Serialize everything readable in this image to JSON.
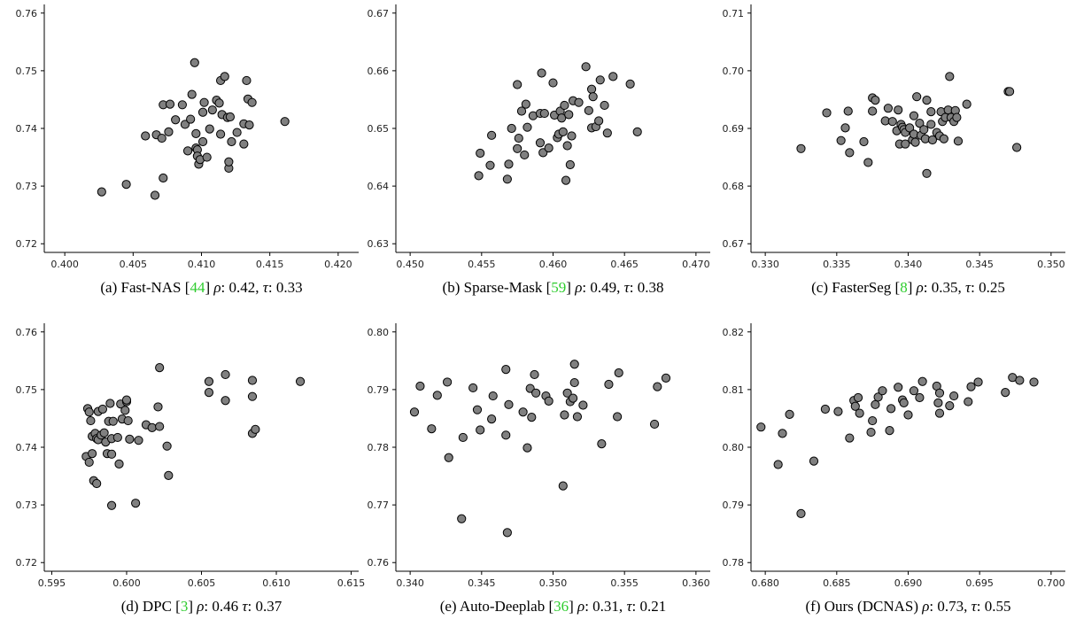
{
  "figure": {
    "background": "#ffffff",
    "point_color": "#808080",
    "point_edge": "#000000",
    "ref_color": "#2ecc2e"
  },
  "chart_data": [
    {
      "type": "scatter",
      "caption": {
        "prefix": "(a)  Fast-NAS [",
        "ref": "44",
        "mid": "] ",
        "rho_label": "ρ",
        "rho_text": ": 0.42, ",
        "tau_label": "τ",
        "tau_text": ": 0.33"
      },
      "xlim": [
        0.3985,
        0.4215
      ],
      "ylim": [
        0.7185,
        0.7615
      ],
      "xticks": [
        "0.400",
        "0.405",
        "0.410",
        "0.415",
        "0.420"
      ],
      "yticks": [
        "0.72",
        "0.73",
        "0.74",
        "0.75",
        "0.76"
      ],
      "points": [
        [
          0.4027,
          0.729
        ],
        [
          0.4045,
          0.7303
        ],
        [
          0.4066,
          0.7284
        ],
        [
          0.4072,
          0.7314
        ],
        [
          0.4059,
          0.7387
        ],
        [
          0.4067,
          0.7389
        ],
        [
          0.4071,
          0.7383
        ],
        [
          0.4076,
          0.7394
        ],
        [
          0.4072,
          0.7441
        ],
        [
          0.4077,
          0.7442
        ],
        [
          0.4081,
          0.7415
        ],
        [
          0.4086,
          0.7441
        ],
        [
          0.4088,
          0.7407
        ],
        [
          0.409,
          0.7361
        ],
        [
          0.4092,
          0.7416
        ],
        [
          0.4093,
          0.7459
        ],
        [
          0.4095,
          0.7514
        ],
        [
          0.4096,
          0.7391
        ],
        [
          0.4096,
          0.7366
        ],
        [
          0.4097,
          0.7363
        ],
        [
          0.4097,
          0.7352
        ],
        [
          0.4098,
          0.7338
        ],
        [
          0.4099,
          0.7346
        ],
        [
          0.4101,
          0.7377
        ],
        [
          0.4101,
          0.7428
        ],
        [
          0.4102,
          0.7445
        ],
        [
          0.4104,
          0.735
        ],
        [
          0.4106,
          0.7399
        ],
        [
          0.4108,
          0.7432
        ],
        [
          0.4111,
          0.7449
        ],
        [
          0.4113,
          0.7444
        ],
        [
          0.4114,
          0.7483
        ],
        [
          0.4114,
          0.739
        ],
        [
          0.4115,
          0.7424
        ],
        [
          0.4117,
          0.749
        ],
        [
          0.4119,
          0.7419
        ],
        [
          0.412,
          0.7331
        ],
        [
          0.412,
          0.7342
        ],
        [
          0.4121,
          0.742
        ],
        [
          0.4122,
          0.7377
        ],
        [
          0.4126,
          0.7393
        ],
        [
          0.4131,
          0.7408
        ],
        [
          0.4131,
          0.7373
        ],
        [
          0.4133,
          0.7483
        ],
        [
          0.4134,
          0.7451
        ],
        [
          0.4135,
          0.7406
        ],
        [
          0.4137,
          0.7445
        ],
        [
          0.4161,
          0.7412
        ]
      ]
    },
    {
      "type": "scatter",
      "caption": {
        "prefix": "(b)  Sparse-Mask [",
        "ref": "59",
        "mid": "] ",
        "rho_label": "ρ",
        "rho_text": ": 0.49, ",
        "tau_label": "τ",
        "tau_text": ": 0.38"
      },
      "xlim": [
        0.449,
        0.471
      ],
      "ylim": [
        0.6285,
        0.6715
      ],
      "xticks": [
        "0.450",
        "0.455",
        "0.460",
        "0.465",
        "0.470"
      ],
      "yticks": [
        "0.63",
        "0.64",
        "0.65",
        "0.66",
        "0.67"
      ],
      "points": [
        [
          0.4548,
          0.6418
        ],
        [
          0.4549,
          0.6457
        ],
        [
          0.4556,
          0.6436
        ],
        [
          0.4557,
          0.6488
        ],
        [
          0.4568,
          0.6412
        ],
        [
          0.4569,
          0.6438
        ],
        [
          0.4571,
          0.65
        ],
        [
          0.4575,
          0.6576
        ],
        [
          0.4575,
          0.6465
        ],
        [
          0.4576,
          0.6483
        ],
        [
          0.4578,
          0.653
        ],
        [
          0.458,
          0.6454
        ],
        [
          0.4581,
          0.6542
        ],
        [
          0.4582,
          0.6502
        ],
        [
          0.4586,
          0.6522
        ],
        [
          0.4591,
          0.6475
        ],
        [
          0.4591,
          0.6526
        ],
        [
          0.4592,
          0.6596
        ],
        [
          0.4593,
          0.6458
        ],
        [
          0.4594,
          0.6526
        ],
        [
          0.4597,
          0.6466
        ],
        [
          0.46,
          0.6579
        ],
        [
          0.4601,
          0.6523
        ],
        [
          0.4603,
          0.6484
        ],
        [
          0.4604,
          0.649
        ],
        [
          0.4605,
          0.653
        ],
        [
          0.4606,
          0.6518
        ],
        [
          0.4607,
          0.6494
        ],
        [
          0.4608,
          0.654
        ],
        [
          0.4609,
          0.641
        ],
        [
          0.461,
          0.647
        ],
        [
          0.4611,
          0.6524
        ],
        [
          0.4612,
          0.6437
        ],
        [
          0.4613,
          0.6487
        ],
        [
          0.4614,
          0.6548
        ],
        [
          0.4618,
          0.6545
        ],
        [
          0.4623,
          0.6607
        ],
        [
          0.4625,
          0.6531
        ],
        [
          0.4627,
          0.6501
        ],
        [
          0.4627,
          0.6568
        ],
        [
          0.4628,
          0.6555
        ],
        [
          0.463,
          0.6503
        ],
        [
          0.4632,
          0.6513
        ],
        [
          0.4633,
          0.6584
        ],
        [
          0.4636,
          0.654
        ],
        [
          0.4638,
          0.6492
        ],
        [
          0.4642,
          0.659
        ],
        [
          0.4654,
          0.6577
        ],
        [
          0.4659,
          0.6494
        ]
      ]
    },
    {
      "type": "scatter",
      "caption": {
        "prefix": "(c)  FasterSeg [",
        "ref": "8",
        "mid": "] ",
        "rho_label": "ρ",
        "rho_text": ": 0.35, ",
        "tau_label": "τ",
        "tau_text": ": 0.25"
      },
      "xlim": [
        0.329,
        0.351
      ],
      "ylim": [
        0.6685,
        0.7115
      ],
      "xticks": [
        "0.330",
        "0.335",
        "0.340",
        "0.345",
        "0.350"
      ],
      "yticks": [
        "0.67",
        "0.68",
        "0.69",
        "0.70",
        "0.71"
      ],
      "points": [
        [
          0.3325,
          0.6865
        ],
        [
          0.3343,
          0.6927
        ],
        [
          0.3353,
          0.6879
        ],
        [
          0.3356,
          0.6901
        ],
        [
          0.3358,
          0.693
        ],
        [
          0.3359,
          0.6858
        ],
        [
          0.3369,
          0.6877
        ],
        [
          0.3372,
          0.6841
        ],
        [
          0.3375,
          0.693
        ],
        [
          0.3375,
          0.6953
        ],
        [
          0.3377,
          0.6949
        ],
        [
          0.3384,
          0.6913
        ],
        [
          0.3386,
          0.6935
        ],
        [
          0.3389,
          0.6912
        ],
        [
          0.3392,
          0.6896
        ],
        [
          0.3393,
          0.6932
        ],
        [
          0.3394,
          0.6873
        ],
        [
          0.3395,
          0.6907
        ],
        [
          0.3396,
          0.6902
        ],
        [
          0.3397,
          0.6898
        ],
        [
          0.3398,
          0.6893
        ],
        [
          0.3398,
          0.6873
        ],
        [
          0.3401,
          0.6901
        ],
        [
          0.3403,
          0.688
        ],
        [
          0.3404,
          0.689
        ],
        [
          0.3404,
          0.6922
        ],
        [
          0.3405,
          0.6876
        ],
        [
          0.3406,
          0.6955
        ],
        [
          0.3408,
          0.6909
        ],
        [
          0.3409,
          0.6888
        ],
        [
          0.3411,
          0.6898
        ],
        [
          0.3412,
          0.6882
        ],
        [
          0.3413,
          0.6949
        ],
        [
          0.3413,
          0.6822
        ],
        [
          0.3416,
          0.6929
        ],
        [
          0.3416,
          0.6907
        ],
        [
          0.3417,
          0.688
        ],
        [
          0.342,
          0.6893
        ],
        [
          0.3422,
          0.6887
        ],
        [
          0.3423,
          0.6929
        ],
        [
          0.3424,
          0.6912
        ],
        [
          0.3425,
          0.6882
        ],
        [
          0.3426,
          0.6919
        ],
        [
          0.3428,
          0.6932
        ],
        [
          0.3429,
          0.699
        ],
        [
          0.343,
          0.6919
        ],
        [
          0.3432,
          0.6912
        ],
        [
          0.3433,
          0.6931
        ],
        [
          0.3434,
          0.6919
        ],
        [
          0.3435,
          0.6878
        ],
        [
          0.3441,
          0.6942
        ],
        [
          0.347,
          0.6964
        ],
        [
          0.3471,
          0.6964
        ],
        [
          0.3476,
          0.6867
        ]
      ]
    },
    {
      "type": "scatter",
      "caption": {
        "prefix": "(d)  DPC [",
        "ref": "3",
        "mid": "] ",
        "rho_label": "ρ",
        "rho_text": ": 0.46 ",
        "tau_label": "τ",
        "tau_text": ": 0.37"
      },
      "xlim": [
        0.5945,
        0.6155
      ],
      "ylim": [
        0.7185,
        0.7615
      ],
      "xticks": [
        "0.595",
        "0.600",
        "0.605",
        "0.610",
        "0.615"
      ],
      "yticks": [
        "0.72",
        "0.73",
        "0.74",
        "0.75",
        "0.76"
      ],
      "points": [
        [
          0.5973,
          0.7384
        ],
        [
          0.5974,
          0.7467
        ],
        [
          0.5975,
          0.7374
        ],
        [
          0.5975,
          0.7461
        ],
        [
          0.5976,
          0.7446
        ],
        [
          0.5977,
          0.7389
        ],
        [
          0.5977,
          0.7419
        ],
        [
          0.5978,
          0.7342
        ],
        [
          0.5979,
          0.7424
        ],
        [
          0.598,
          0.7337
        ],
        [
          0.598,
          0.7415
        ],
        [
          0.5981,
          0.7413
        ],
        [
          0.5981,
          0.7462
        ],
        [
          0.5983,
          0.7421
        ],
        [
          0.5984,
          0.7466
        ],
        [
          0.5985,
          0.7425
        ],
        [
          0.5986,
          0.7409
        ],
        [
          0.5987,
          0.7389
        ],
        [
          0.5988,
          0.7445
        ],
        [
          0.5989,
          0.7476
        ],
        [
          0.599,
          0.7299
        ],
        [
          0.599,
          0.7388
        ],
        [
          0.599,
          0.7415
        ],
        [
          0.5991,
          0.7445
        ],
        [
          0.5994,
          0.7417
        ],
        [
          0.5995,
          0.7371
        ],
        [
          0.5996,
          0.7475
        ],
        [
          0.5997,
          0.7449
        ],
        [
          0.5999,
          0.7464
        ],
        [
          0.6,
          0.7479
        ],
        [
          0.6,
          0.7482
        ],
        [
          0.6001,
          0.7446
        ],
        [
          0.6002,
          0.7414
        ],
        [
          0.6006,
          0.7303
        ],
        [
          0.6008,
          0.7412
        ],
        [
          0.6013,
          0.7439
        ],
        [
          0.6017,
          0.7434
        ],
        [
          0.6021,
          0.747
        ],
        [
          0.6022,
          0.7538
        ],
        [
          0.6022,
          0.7436
        ],
        [
          0.6027,
          0.7402
        ],
        [
          0.6028,
          0.7351
        ],
        [
          0.6055,
          0.7514
        ],
        [
          0.6055,
          0.7495
        ],
        [
          0.6066,
          0.7526
        ],
        [
          0.6066,
          0.7481
        ],
        [
          0.6084,
          0.7516
        ],
        [
          0.6084,
          0.7424
        ],
        [
          0.6084,
          0.7488
        ],
        [
          0.6086,
          0.7431
        ],
        [
          0.6116,
          0.7514
        ]
      ]
    },
    {
      "type": "scatter",
      "caption": {
        "prefix": "(e)  Auto-Deeplab [",
        "ref": "36",
        "mid": "] ",
        "rho_label": "ρ",
        "rho_text": ": 0.31, ",
        "tau_label": "τ",
        "tau_text": ": 0.21"
      },
      "xlim": [
        0.339,
        0.361
      ],
      "ylim": [
        0.7585,
        0.8015
      ],
      "xticks": [
        "0.340",
        "0.345",
        "0.350",
        "0.355",
        "0.360"
      ],
      "yticks": [
        "0.76",
        "0.77",
        "0.78",
        "0.79",
        "0.80"
      ],
      "points": [
        [
          0.3403,
          0.7861
        ],
        [
          0.3407,
          0.7906
        ],
        [
          0.3415,
          0.7832
        ],
        [
          0.3419,
          0.789
        ],
        [
          0.3426,
          0.7913
        ],
        [
          0.3427,
          0.7782
        ],
        [
          0.3436,
          0.7676
        ],
        [
          0.3437,
          0.7817
        ],
        [
          0.3444,
          0.7903
        ],
        [
          0.3447,
          0.7865
        ],
        [
          0.3449,
          0.783
        ],
        [
          0.3457,
          0.7849
        ],
        [
          0.3458,
          0.7889
        ],
        [
          0.3467,
          0.7821
        ],
        [
          0.3467,
          0.7935
        ],
        [
          0.3468,
          0.7652
        ],
        [
          0.3469,
          0.7874
        ],
        [
          0.3479,
          0.7861
        ],
        [
          0.3482,
          0.7799
        ],
        [
          0.3484,
          0.7902
        ],
        [
          0.3485,
          0.7852
        ],
        [
          0.3487,
          0.7926
        ],
        [
          0.3488,
          0.7894
        ],
        [
          0.3495,
          0.7889
        ],
        [
          0.3497,
          0.788
        ],
        [
          0.3507,
          0.7733
        ],
        [
          0.3508,
          0.7856
        ],
        [
          0.351,
          0.7894
        ],
        [
          0.3512,
          0.7879
        ],
        [
          0.3514,
          0.7885
        ],
        [
          0.3515,
          0.7912
        ],
        [
          0.3515,
          0.7944
        ],
        [
          0.3517,
          0.7853
        ],
        [
          0.3521,
          0.7873
        ],
        [
          0.3534,
          0.7806
        ],
        [
          0.3539,
          0.7909
        ],
        [
          0.3545,
          0.7853
        ],
        [
          0.3546,
          0.7929
        ],
        [
          0.3571,
          0.784
        ],
        [
          0.3573,
          0.7905
        ],
        [
          0.3579,
          0.792
        ]
      ]
    },
    {
      "type": "scatter",
      "caption": {
        "prefix": "(f)  Ours (DCNAS) ",
        "ref": "",
        "mid": "",
        "rho_label": "ρ",
        "rho_text": ": 0.73, ",
        "tau_label": "τ",
        "tau_text": ": 0.55"
      },
      "xlim": [
        0.679,
        0.701
      ],
      "ylim": [
        0.7785,
        0.8215
      ],
      "xticks": [
        "0.680",
        "0.685",
        "0.690",
        "0.695",
        "0.700"
      ],
      "yticks": [
        "0.78",
        "0.79",
        "0.80",
        "0.81",
        "0.82"
      ],
      "points": [
        [
          0.6797,
          0.8035
        ],
        [
          0.6809,
          0.797
        ],
        [
          0.6812,
          0.8024
        ],
        [
          0.6817,
          0.8057
        ],
        [
          0.6825,
          0.7885
        ],
        [
          0.6834,
          0.7976
        ],
        [
          0.6842,
          0.8066
        ],
        [
          0.6851,
          0.8062
        ],
        [
          0.6859,
          0.8016
        ],
        [
          0.6862,
          0.8081
        ],
        [
          0.6863,
          0.8071
        ],
        [
          0.6865,
          0.8086
        ],
        [
          0.6866,
          0.8059
        ],
        [
          0.6874,
          0.8026
        ],
        [
          0.6875,
          0.8046
        ],
        [
          0.6877,
          0.8074
        ],
        [
          0.6879,
          0.8087
        ],
        [
          0.6882,
          0.8098
        ],
        [
          0.6887,
          0.8029
        ],
        [
          0.6888,
          0.8067
        ],
        [
          0.6893,
          0.8104
        ],
        [
          0.6896,
          0.8082
        ],
        [
          0.6897,
          0.8077
        ],
        [
          0.69,
          0.8056
        ],
        [
          0.6904,
          0.8098
        ],
        [
          0.6908,
          0.8086
        ],
        [
          0.691,
          0.8114
        ],
        [
          0.692,
          0.8106
        ],
        [
          0.6921,
          0.8077
        ],
        [
          0.6922,
          0.8094
        ],
        [
          0.6922,
          0.8059
        ],
        [
          0.6929,
          0.8072
        ],
        [
          0.6932,
          0.8089
        ],
        [
          0.6942,
          0.8079
        ],
        [
          0.6944,
          0.8105
        ],
        [
          0.6949,
          0.8113
        ],
        [
          0.6968,
          0.8095
        ],
        [
          0.6973,
          0.8121
        ],
        [
          0.6978,
          0.8116
        ],
        [
          0.6988,
          0.8113
        ]
      ]
    }
  ]
}
